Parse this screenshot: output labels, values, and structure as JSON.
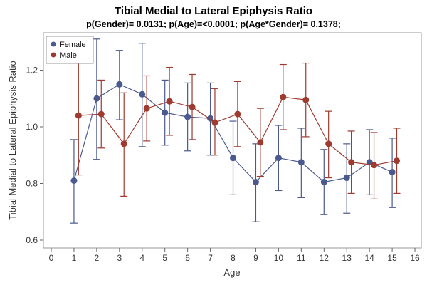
{
  "chart_data": {
    "type": "line",
    "title": "Tibial Medial to Lateral Epiphysis Ratio",
    "subtitle": "p(Gender)= 0.0131; p(Age)=<0.0001; p(Age*Gender)= 0.1378;",
    "xlabel": "Age",
    "ylabel": "Tibial Medial to Lateral Epiphysis Ratio",
    "xlim": [
      0,
      16
    ],
    "ylim": [
      0.6,
      1.3
    ],
    "xticks": [
      "0",
      "1",
      "2",
      "3",
      "4",
      "5",
      "6",
      "7",
      "8",
      "9",
      "10",
      "11",
      "12",
      "13",
      "14",
      "15",
      "16"
    ],
    "yticks": [
      "0.6",
      "0.8",
      "1.0",
      "1.2"
    ],
    "grid": false,
    "legend_position": "top-left",
    "series": [
      {
        "name": "Female",
        "color": "#4a5a8f",
        "points": [
          {
            "x": 1,
            "y": 0.81,
            "lo": 0.66,
            "hi": 0.955
          },
          {
            "x": 2,
            "y": 1.1,
            "lo": 0.885,
            "hi": 1.31
          },
          {
            "x": 3,
            "y": 1.15,
            "lo": 1.025,
            "hi": 1.27
          },
          {
            "x": 4,
            "y": 1.115,
            "lo": 0.93,
            "hi": 1.295
          },
          {
            "x": 5,
            "y": 1.05,
            "lo": 0.935,
            "hi": 1.165
          },
          {
            "x": 6,
            "y": 1.035,
            "lo": 0.915,
            "hi": 1.155
          },
          {
            "x": 7,
            "y": 1.03,
            "lo": 0.9,
            "hi": 1.155
          },
          {
            "x": 8,
            "y": 0.89,
            "lo": 0.76,
            "hi": 1.02
          },
          {
            "x": 9,
            "y": 0.805,
            "lo": 0.665,
            "hi": 0.94
          },
          {
            "x": 10,
            "y": 0.89,
            "lo": 0.775,
            "hi": 1.005
          },
          {
            "x": 11,
            "y": 0.875,
            "lo": 0.75,
            "hi": 0.995
          },
          {
            "x": 12,
            "y": 0.805,
            "lo": 0.69,
            "hi": 0.92
          },
          {
            "x": 13,
            "y": 0.82,
            "lo": 0.695,
            "hi": 0.94
          },
          {
            "x": 14,
            "y": 0.875,
            "lo": 0.76,
            "hi": 0.99
          },
          {
            "x": 15,
            "y": 0.84,
            "lo": 0.715,
            "hi": 0.96
          }
        ]
      },
      {
        "name": "Male",
        "color": "#9e3a2e",
        "points": [
          {
            "x": 1.2,
            "y": 1.04,
            "lo": 0.83,
            "hi": 1.245
          },
          {
            "x": 2.2,
            "y": 1.045,
            "lo": 0.925,
            "hi": 1.165
          },
          {
            "x": 3.2,
            "y": 0.94,
            "lo": 0.755,
            "hi": 1.12
          },
          {
            "x": 4.2,
            "y": 1.065,
            "lo": 0.95,
            "hi": 1.18
          },
          {
            "x": 5.2,
            "y": 1.09,
            "lo": 0.97,
            "hi": 1.21
          },
          {
            "x": 6.2,
            "y": 1.07,
            "lo": 0.955,
            "hi": 1.185
          },
          {
            "x": 7.2,
            "y": 1.015,
            "lo": 0.9,
            "hi": 1.135
          },
          {
            "x": 8.2,
            "y": 1.045,
            "lo": 0.93,
            "hi": 1.16
          },
          {
            "x": 9.2,
            "y": 0.945,
            "lo": 0.825,
            "hi": 1.065
          },
          {
            "x": 10.2,
            "y": 1.105,
            "lo": 0.99,
            "hi": 1.22
          },
          {
            "x": 11.2,
            "y": 1.095,
            "lo": 0.965,
            "hi": 1.225
          },
          {
            "x": 12.2,
            "y": 0.94,
            "lo": 0.82,
            "hi": 1.055
          },
          {
            "x": 13.2,
            "y": 0.875,
            "lo": 0.765,
            "hi": 0.985
          },
          {
            "x": 14.2,
            "y": 0.865,
            "lo": 0.745,
            "hi": 0.98
          },
          {
            "x": 15.2,
            "y": 0.88,
            "lo": 0.765,
            "hi": 0.995
          }
        ]
      }
    ]
  }
}
